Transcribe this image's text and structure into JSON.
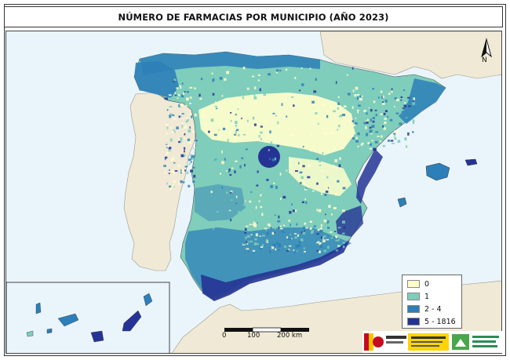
{
  "map": {
    "title": "NÚMERO DE FARMACIAS POR MUNICIPIO (AÑO 2023)",
    "legend": [
      {
        "label": "0",
        "color": "#ffffcc"
      },
      {
        "label": "1",
        "color": "#7fcdbb"
      },
      {
        "label": "2 - 4",
        "color": "#2c7fb8"
      },
      {
        "label": "5 - 1816",
        "color": "#253494"
      }
    ],
    "scale_bar": {
      "ticks": [
        "0",
        "100",
        "200 km"
      ]
    },
    "north_arrow": "N",
    "colors": {
      "sea": "#eaf5fb",
      "foreign_land": "#efe9d6",
      "class_0": "#ffffcc",
      "class_1": "#7fcdbb",
      "class_2_4": "#2c7fb8",
      "class_5_plus": "#253494"
    },
    "logos": [
      {
        "name": "gobierno-de-espana-logo"
      },
      {
        "name": "ministerio-transicion-ecologica-logo"
      },
      {
        "name": "secretaria-general-reto-demografico-logo"
      }
    ]
  }
}
